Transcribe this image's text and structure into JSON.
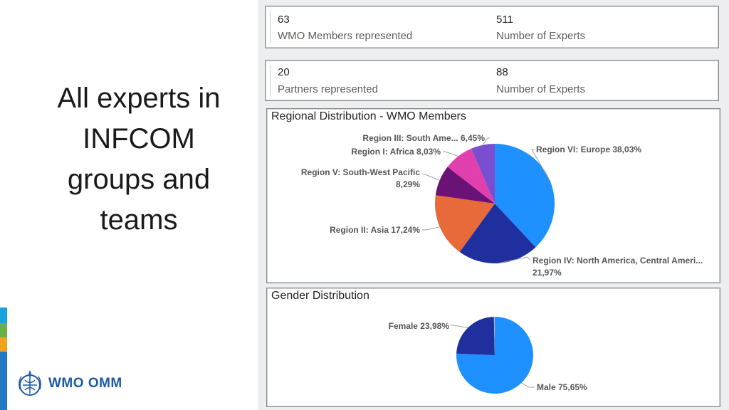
{
  "slide": {
    "title_lines": [
      "All experts in",
      "INFCOM",
      "groups and",
      "teams"
    ],
    "logo_text": "WMO OMM"
  },
  "kpi_cards": [
    {
      "left_value": "63",
      "left_label": "WMO Members represented",
      "right_value": "511",
      "right_label": "Number of Experts"
    },
    {
      "left_value": "20",
      "left_label": "Partners represented",
      "right_value": "88",
      "right_label": "Number of Experts"
    }
  ],
  "chart_data": [
    {
      "type": "pie",
      "title": "Regional Distribution - WMO Members",
      "slices": [
        {
          "label": "Region VI: Europe 38,03%",
          "value": 38.03,
          "color": "#1e90ff"
        },
        {
          "label": "Region IV: North America, Central Ameri... 21,97%",
          "label_lines": [
            "Region IV: North America, Central Ameri...",
            "21,97%"
          ],
          "value": 21.97,
          "color": "#1f2f9e"
        },
        {
          "label": "Region II: Asia 17,24%",
          "value": 17.24,
          "color": "#e8693a"
        },
        {
          "label": "Region V: South-West Pacific 8,29%",
          "label_lines": [
            "Region V: South-West Pacific",
            "8,29%"
          ],
          "value": 8.29,
          "color": "#6a1276"
        },
        {
          "label": "Region I: Africa 8,03%",
          "value": 8.03,
          "color": "#e13fae"
        },
        {
          "label": "Region III: South Ame... 6,45%",
          "value": 6.45,
          "color": "#7a4fcf"
        }
      ]
    },
    {
      "type": "pie",
      "title": "Gender Distribution",
      "slices": [
        {
          "label": "Male 75,65%",
          "value": 75.65,
          "color": "#1e90ff"
        },
        {
          "label": "Female 23,98%",
          "value": 23.98,
          "color": "#1f2f9e"
        },
        {
          "label": "",
          "value": 0.37,
          "color": "#b8b8b8"
        }
      ]
    }
  ],
  "colors": {
    "strip": [
      "#19a3dd",
      "#6ab145",
      "#f0a21d",
      "#2178c4"
    ],
    "brand": "#1f5aa6"
  }
}
